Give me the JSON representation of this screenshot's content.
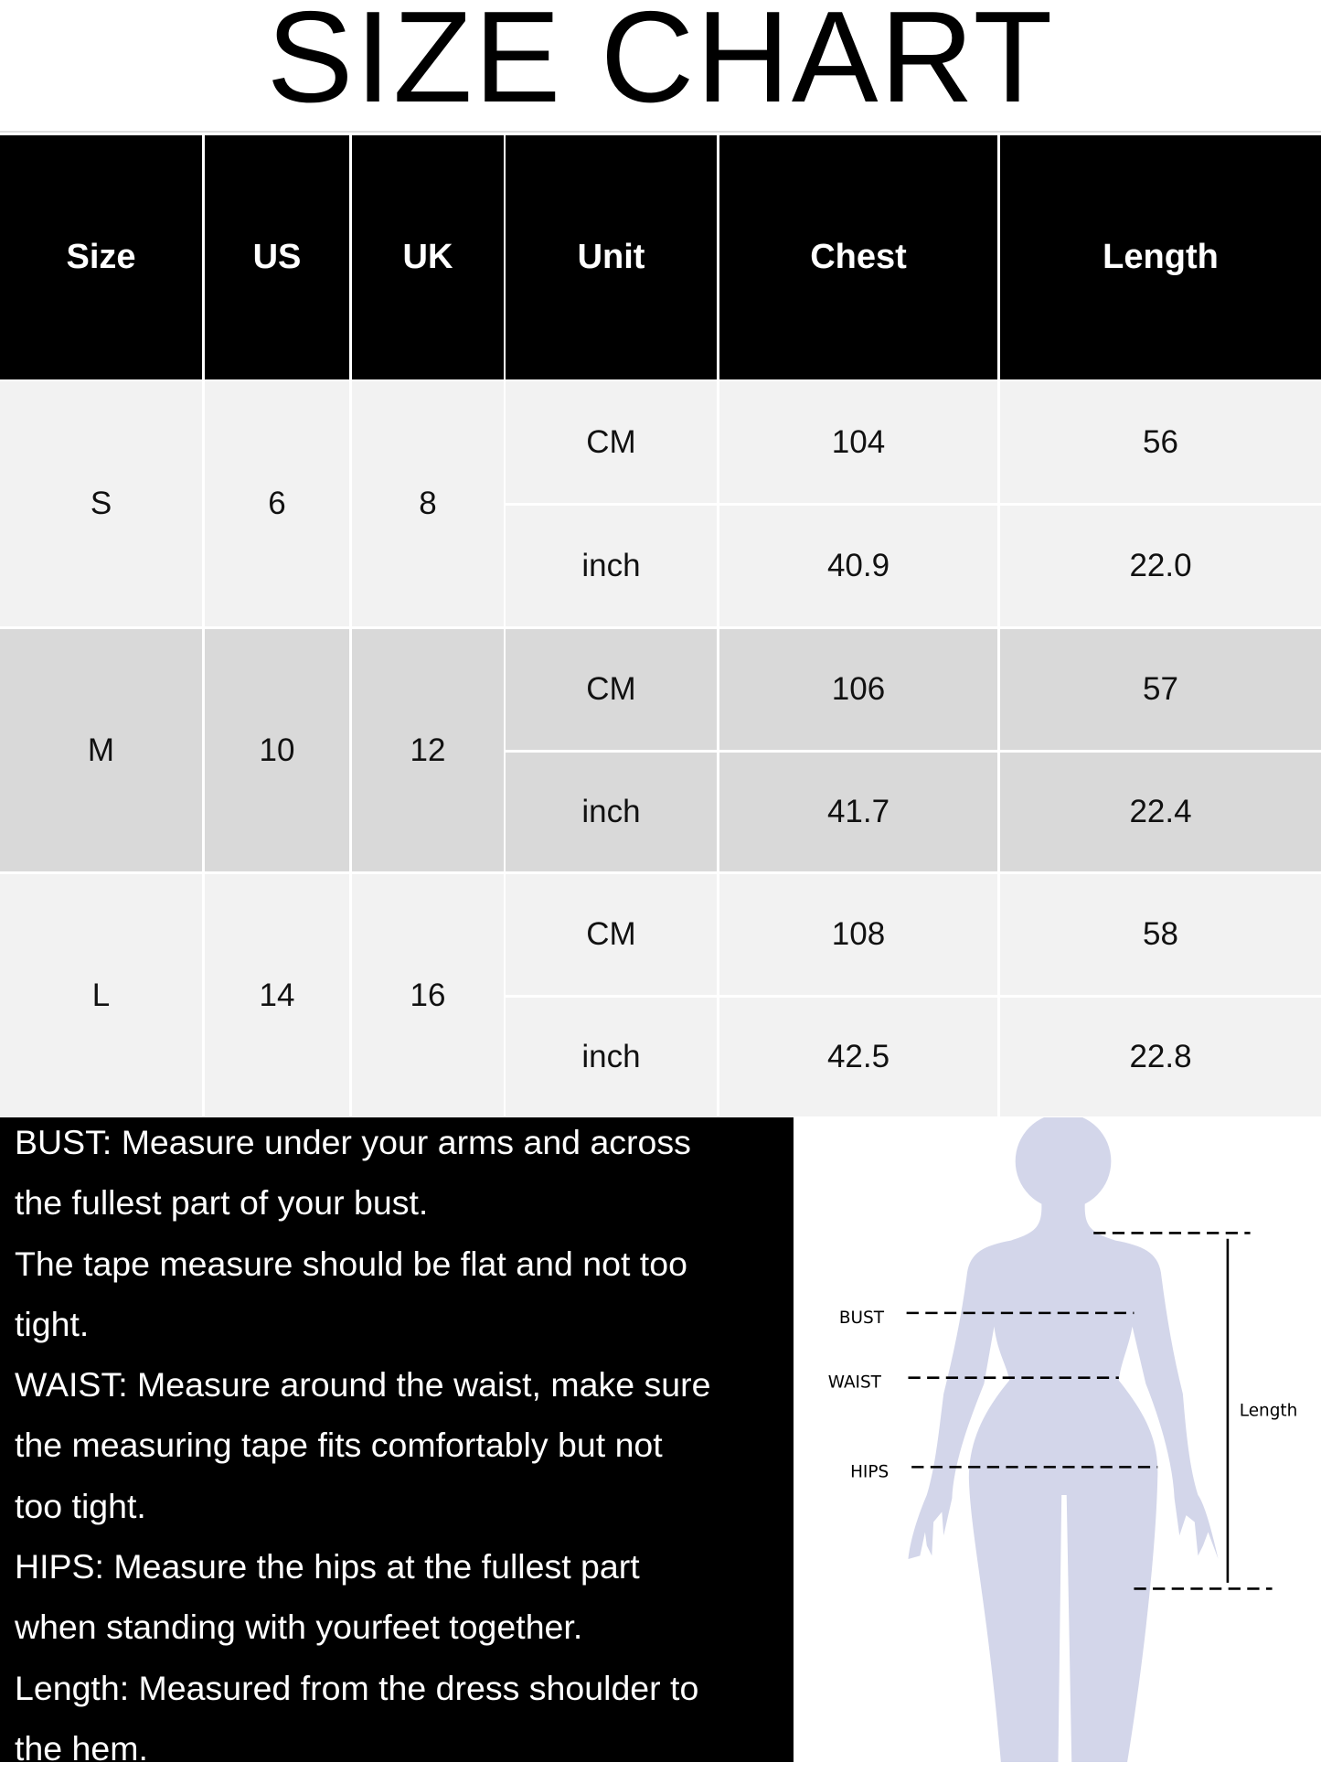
{
  "title": "SIZE CHART",
  "table": {
    "headers": [
      "Size",
      "US",
      "UK",
      "Unit",
      "Chest",
      "Length"
    ],
    "rows": [
      {
        "size": "S",
        "us": "6",
        "uk": "8",
        "shade": "#f2f2f2",
        "measures": [
          {
            "unit": "CM",
            "chest": "104",
            "length": "56"
          },
          {
            "unit": "inch",
            "chest": "40.9",
            "length": "22.0"
          }
        ]
      },
      {
        "size": "M",
        "us": "10",
        "uk": "12",
        "shade": "#d9d9d9",
        "measures": [
          {
            "unit": "CM",
            "chest": "106",
            "length": "57"
          },
          {
            "unit": "inch",
            "chest": "41.7",
            "length": "22.4"
          }
        ]
      },
      {
        "size": "L",
        "us": "14",
        "uk": "16",
        "shade": "#f2f2f2",
        "measures": [
          {
            "unit": "CM",
            "chest": "108",
            "length": "58"
          },
          {
            "unit": "inch",
            "chest": "42.5",
            "length": "22.8"
          }
        ]
      }
    ]
  },
  "notes": {
    "lines": [
      "BUST: Measure under your arms and across",
      "the fullest part of your bust.",
      "The tape measure should be flat and not too",
      "tight.",
      "WAIST: Measure around the waist, make sure",
      "the measuring tape fits comfortably but not",
      "too tight.",
      "HIPS: Measure the hips at the fullest part",
      "when standing with yourfeet together.",
      "Length: Measured from the dress shoulder to",
      "the hem."
    ]
  },
  "figure": {
    "bust_label": "BUST",
    "waist_label": "WAIST",
    "hips_label": "HIPS",
    "length_label": "Length",
    "body_color": "#d3d6ea"
  }
}
